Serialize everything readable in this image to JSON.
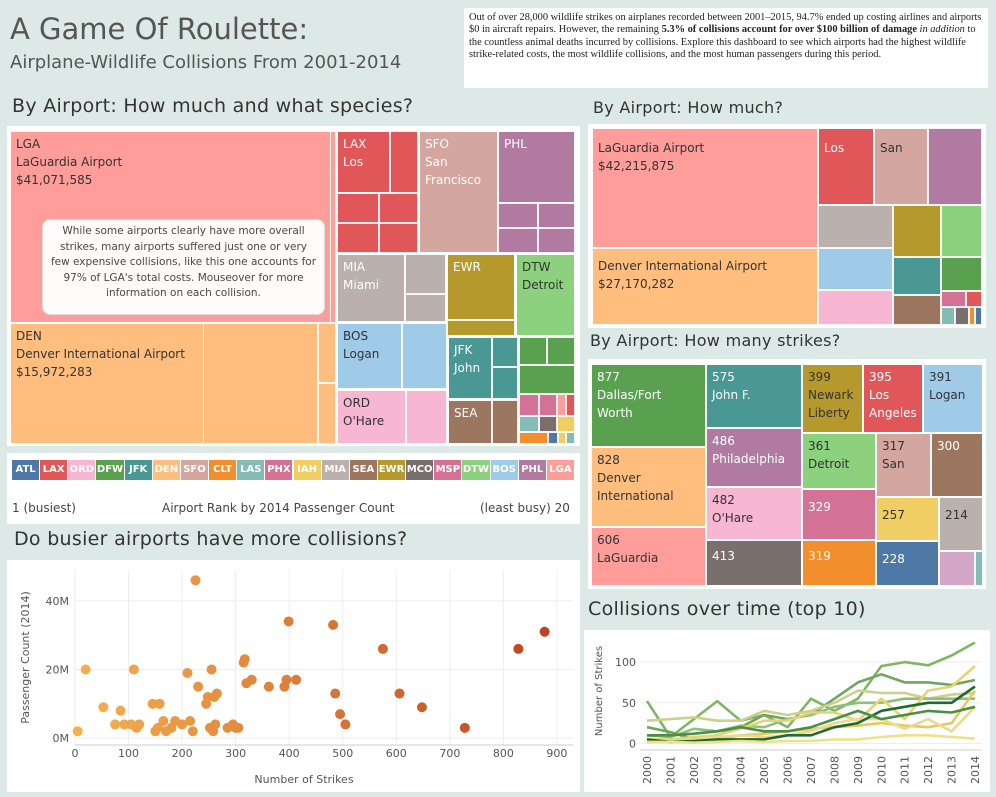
{
  "header": {
    "title": "A Game Of Roulette:",
    "subtitle": "Airplane-Wildlife Collisions From 2001-2014",
    "intro_a": "Out of over 28,000 wildlife strikes on airplanes recorded between 2001–2015, 94.7% ended up costing airlines and airports $0 in aircraft repairs. However, the remaining ",
    "intro_b": "5.3% of collisions account for over $100 billion of damage",
    "intro_c": " in addition",
    "intro_d": " to the countless animal deaths incurred by collisions. Explore this dashboard to see which airports had the highest wildlife strike-related costs, the most wildlife collisions, and the most human passengers during this period."
  },
  "section_titles": {
    "species": "By Airport: How much and what species?",
    "how_much": "By Airport: How much?",
    "how_many": "By Airport: How many strikes?",
    "busier": "Do busier airports have more collisions?",
    "over_time": "Collisions over time (top 10)"
  },
  "species_tree": {
    "lga_code": "LGA",
    "lga_name": "LaGuardia Airport",
    "lga_cost": "$41,071,585",
    "den_code": "DEN",
    "den_name": "Denver International Airport",
    "den_cost": "$15,972,283",
    "lax_code": "LAX",
    "lax_name": "Los",
    "sfo_code": "SFO",
    "sfo_name1": "San",
    "sfo_name2": "Francisco",
    "phl_code": "PHL",
    "mia_code": "MIA",
    "mia_name": "Miami",
    "ewr_code": "EWR",
    "dtw_code": "DTW",
    "dtw_name": "Detroit",
    "bos_code": "BOS",
    "bos_name": "Logan",
    "jfk_code": "JFK",
    "jfk_name": "John",
    "ord_code": "ORD",
    "ord_name": "O'Hare",
    "sea_code": "SEA",
    "note_text": "While some airports clearly have more overall strikes, many airports suffered just one or very few expensive collisions, like this one accounts for 97% of LGA's total costs. Mouseover for more information on each collision."
  },
  "rank_bar": {
    "items": [
      {
        "code": "ATL",
        "color": "#4e79a7"
      },
      {
        "code": "LAX",
        "color": "#e15759"
      },
      {
        "code": "ORD",
        "color": "#f7b6d2"
      },
      {
        "code": "DFW",
        "color": "#59a14f"
      },
      {
        "code": "JFK",
        "color": "#499894"
      },
      {
        "code": "DEN",
        "color": "#ffbe7d"
      },
      {
        "code": "SFO",
        "color": "#d4a6a0"
      },
      {
        "code": "CLT",
        "color": "#f28e2b"
      },
      {
        "code": "LAS",
        "color": "#86bcb6"
      },
      {
        "code": "PHX",
        "color": "#d37295"
      },
      {
        "code": "IAH",
        "color": "#f1ce63"
      },
      {
        "code": "MIA",
        "color": "#bab0ac"
      },
      {
        "code": "SEA",
        "color": "#9d7660"
      },
      {
        "code": "EWR",
        "color": "#b6992d"
      },
      {
        "code": "MCO",
        "color": "#79706e"
      },
      {
        "code": "MSP",
        "color": "#d37295"
      },
      {
        "code": "DTW",
        "color": "#8cd17d"
      },
      {
        "code": "BOS",
        "color": "#a0cbe8"
      },
      {
        "code": "PHL",
        "color": "#b07aa1"
      },
      {
        "code": "LGA",
        "color": "#ff9d9a"
      }
    ],
    "left_label": "1 (busiest)",
    "center_label": "Airport Rank by 2014 Passenger Count",
    "right_label": "(least busy) 20"
  },
  "how_much": {
    "lga_name": "LaGuardia Airport",
    "lga_cost": "$42,215,875",
    "den_name": "Denver International Airport",
    "den_cost": "$27,170,282",
    "los_label": "Los",
    "san_label": "San"
  },
  "how_many": {
    "dfw_count": "877",
    "dfw_n1": "Dallas/Fort",
    "dfw_n2": "Worth",
    "den_count": "828",
    "den_n1": "Denver",
    "den_n2": "International",
    "lga_count": "606",
    "lga_n1": "LaGuardia",
    "jfk_count": "575",
    "jfk_n1": "John F.",
    "phl_count": "486",
    "phl_n1": "Philadelphia",
    "ord_count": "482",
    "ord_n1": "O'Hare",
    "c413": "413",
    "ewr_count": "399",
    "ewr_n1": "Newark",
    "ewr_n2": "Liberty",
    "lax_count": "395",
    "lax_n1": "Los",
    "lax_n2": "Angeles",
    "bos_count": "391",
    "bos_n1": "Logan",
    "dtw_count": "361",
    "dtw_n1": "Detroit",
    "sfo_count": "317",
    "sfo_n1": "San",
    "c300": "300",
    "c329": "329",
    "c257": "257",
    "c214": "214",
    "c319": "319",
    "c228": "228"
  },
  "chart_data": [
    {
      "type": "scatter",
      "title": "Do busier airports have more collisions?",
      "xlabel": "Number of Strikes",
      "ylabel": "Passenger Count (2014)",
      "xlim": [
        0,
        930
      ],
      "ylim": [
        -2,
        49
      ],
      "x_ticks": [
        "0",
        "100",
        "200",
        "300",
        "400",
        "500",
        "600",
        "700",
        "800",
        "900"
      ],
      "y_ticks": [
        "0M",
        "20M",
        "40M"
      ],
      "points": [
        {
          "x": 5,
          "y": 2
        },
        {
          "x": 20,
          "y": 20
        },
        {
          "x": 53,
          "y": 9
        },
        {
          "x": 75,
          "y": 4
        },
        {
          "x": 85,
          "y": 8
        },
        {
          "x": 92,
          "y": 4
        },
        {
          "x": 105,
          "y": 4
        },
        {
          "x": 110,
          "y": 20
        },
        {
          "x": 115,
          "y": 3
        },
        {
          "x": 120,
          "y": 4
        },
        {
          "x": 145,
          "y": 10
        },
        {
          "x": 150,
          "y": 2
        },
        {
          "x": 155,
          "y": 3
        },
        {
          "x": 158,
          "y": 10
        },
        {
          "x": 165,
          "y": 5
        },
        {
          "x": 170,
          "y": 2
        },
        {
          "x": 180,
          "y": 3
        },
        {
          "x": 187,
          "y": 5
        },
        {
          "x": 200,
          "y": 4
        },
        {
          "x": 210,
          "y": 19
        },
        {
          "x": 215,
          "y": 5
        },
        {
          "x": 220,
          "y": 2
        },
        {
          "x": 225,
          "y": 46
        },
        {
          "x": 230,
          "y": 15
        },
        {
          "x": 245,
          "y": 10
        },
        {
          "x": 248,
          "y": 12
        },
        {
          "x": 252,
          "y": 3
        },
        {
          "x": 255,
          "y": 20
        },
        {
          "x": 258,
          "y": 2
        },
        {
          "x": 260,
          "y": 12
        },
        {
          "x": 262,
          "y": 4
        },
        {
          "x": 265,
          "y": 13
        },
        {
          "x": 285,
          "y": 3
        },
        {
          "x": 295,
          "y": 4
        },
        {
          "x": 300,
          "y": 3
        },
        {
          "x": 305,
          "y": 3
        },
        {
          "x": 315,
          "y": 22
        },
        {
          "x": 317,
          "y": 23
        },
        {
          "x": 320,
          "y": 16
        },
        {
          "x": 330,
          "y": 17
        },
        {
          "x": 362,
          "y": 15
        },
        {
          "x": 391,
          "y": 15
        },
        {
          "x": 395,
          "y": 17
        },
        {
          "x": 399,
          "y": 34
        },
        {
          "x": 413,
          "y": 17
        },
        {
          "x": 482,
          "y": 33
        },
        {
          "x": 486,
          "y": 13
        },
        {
          "x": 495,
          "y": 7
        },
        {
          "x": 505,
          "y": 4
        },
        {
          "x": 575,
          "y": 26
        },
        {
          "x": 606,
          "y": 13
        },
        {
          "x": 648,
          "y": 9
        },
        {
          "x": 728,
          "y": 3
        },
        {
          "x": 828,
          "y": 26
        },
        {
          "x": 877,
          "y": 31
        }
      ]
    },
    {
      "type": "line",
      "title": "Collisions over time (top 10)",
      "ylabel": "Number of Strikes",
      "x": [
        "2000",
        "2001",
        "2002",
        "2003",
        "2004",
        "2005",
        "2006",
        "2007",
        "2008",
        "2009",
        "2010",
        "2011",
        "2012",
        "2013",
        "2014"
      ],
      "ylim": [
        -8,
        132
      ],
      "y_ticks": [
        "0",
        "50",
        "100"
      ],
      "series": [
        {
          "color": "#7fb664",
          "values": [
            52,
            8,
            30,
            52,
            28,
            35,
            20,
            55,
            40,
            55,
            95,
            100,
            96,
            108,
            124
          ]
        },
        {
          "color": "#70a55c",
          "values": [
            20,
            14,
            5,
            10,
            20,
            35,
            30,
            35,
            55,
            75,
            85,
            75,
            75,
            72,
            78
          ]
        },
        {
          "color": "#cdd08a",
          "values": [
            28,
            30,
            32,
            28,
            28,
            40,
            35,
            40,
            50,
            65,
            62,
            62,
            55,
            60,
            62
          ]
        },
        {
          "color": "#8fc07a",
          "values": [
            10,
            8,
            18,
            15,
            22,
            20,
            30,
            35,
            45,
            50,
            50,
            55,
            55,
            55,
            55
          ]
        },
        {
          "color": "#e4d474",
          "values": [
            5,
            5,
            8,
            10,
            18,
            28,
            28,
            38,
            38,
            28,
            55,
            30,
            65,
            70,
            95
          ]
        },
        {
          "color": "#e8c85e",
          "values": [
            2,
            3,
            5,
            5,
            10,
            12,
            15,
            18,
            20,
            22,
            25,
            22,
            20,
            25,
            65
          ]
        },
        {
          "color": "#ebd990",
          "values": [
            5,
            3,
            5,
            8,
            10,
            8,
            10,
            15,
            25,
            30,
            30,
            18,
            30,
            15,
            45
          ]
        },
        {
          "color": "#1e6b2e",
          "values": [
            5,
            2,
            3,
            5,
            5,
            5,
            10,
            10,
            20,
            25,
            40,
            45,
            50,
            50,
            70
          ]
        },
        {
          "color": "#4a8f45",
          "values": [
            10,
            10,
            12,
            15,
            20,
            15,
            15,
            20,
            30,
            40,
            30,
            35,
            40,
            38,
            45
          ]
        },
        {
          "color": "#f0e08a",
          "values": [
            2,
            2,
            1,
            2,
            3,
            2,
            3,
            3,
            5,
            5,
            8,
            10,
            10,
            8,
            6
          ]
        }
      ]
    }
  ]
}
